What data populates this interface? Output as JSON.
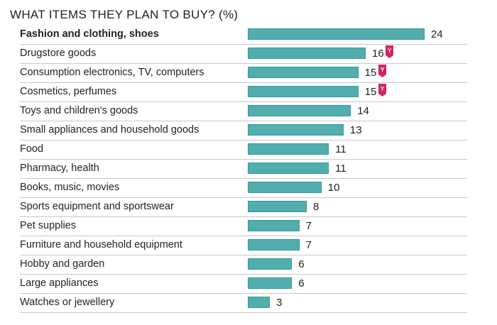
{
  "chart_data": {
    "type": "bar",
    "orientation": "horizontal",
    "title": "WHAT ITEMS THEY PLAN TO BUY? (%)",
    "categories": [
      "Fashion and clothing, shoes",
      "Drugstore goods",
      "Consumption electronics, TV, computers",
      "Cosmetics, perfumes",
      "Toys and children's goods",
      "Small appliances and household goods",
      "Food",
      "Pharmacy, health",
      "Books, music, movies",
      "Sports equipment and sportswear",
      "Pet supplies",
      "Furniture and household equipment",
      "Hobby and garden",
      "Large appliances",
      "Watches or jewellery"
    ],
    "values": [
      24,
      16,
      15,
      15,
      14,
      13,
      11,
      11,
      10,
      8,
      7,
      7,
      6,
      6,
      3
    ],
    "highlight_badge": [
      false,
      true,
      true,
      true,
      false,
      false,
      false,
      false,
      false,
      false,
      false,
      false,
      false,
      false,
      false
    ],
    "badge_text": "Y",
    "bold_first": true,
    "colors": {
      "bar": "#53adad",
      "bar_border": "#2b9d9d",
      "badge": "#d6245a"
    },
    "xlim": [
      0,
      24
    ],
    "grid": false
  }
}
